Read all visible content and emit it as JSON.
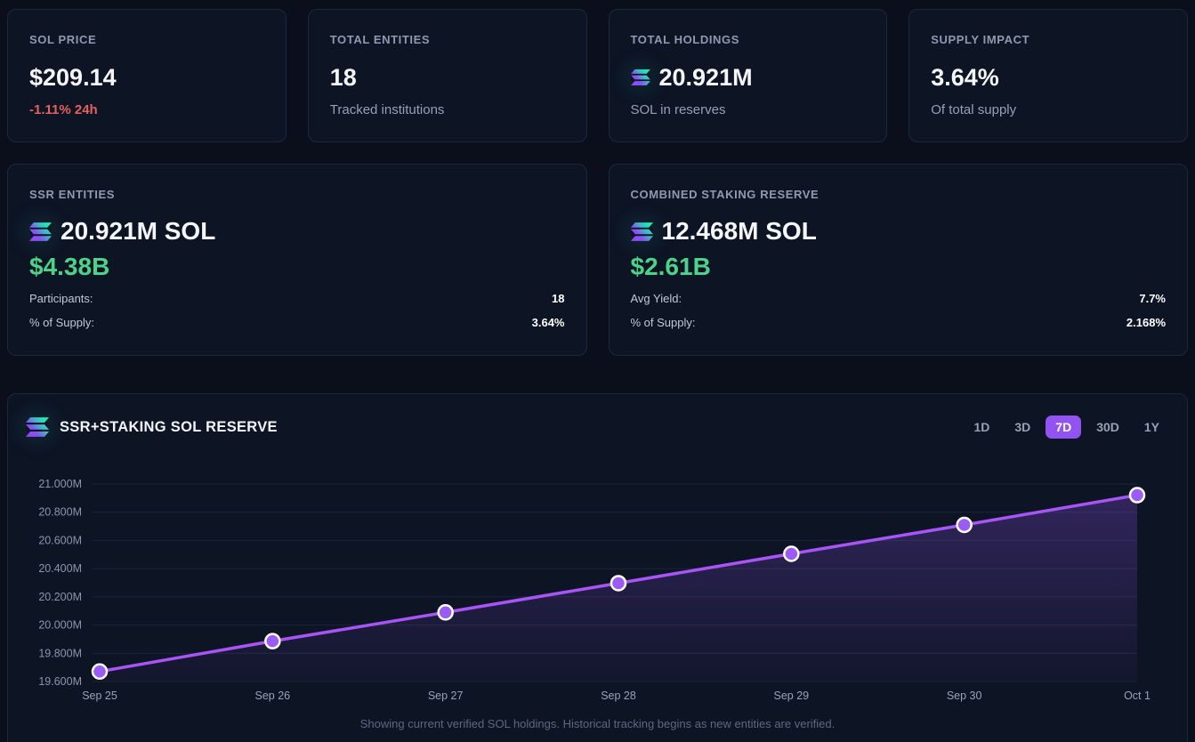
{
  "colors": {
    "accent_purple": "#9353f3",
    "line_purple": "#a855f7",
    "point_purple": "#9b5cf6",
    "positive_green": "#4ed188",
    "negative_red": "#e5605e"
  },
  "stats": [
    {
      "label": "SOL PRICE",
      "value": "$209.14",
      "sub": "-1.11% 24h"
    },
    {
      "label": "TOTAL ENTITIES",
      "value": "18",
      "sub": "Tracked institutions"
    },
    {
      "label": "TOTAL HOLDINGS",
      "value": "20.921M",
      "sub": "SOL in reserves",
      "icon": "solana-icon"
    },
    {
      "label": "SUPPLY IMPACT",
      "value": "3.64%",
      "sub": "Of total supply"
    }
  ],
  "ssr_entities": {
    "label": "SSR ENTITIES",
    "icon": "solana-icon",
    "sol_value": "20.921M SOL",
    "usd_value": "$4.38B",
    "rows": [
      {
        "label": "Participants:",
        "value": "18"
      },
      {
        "label": "% of Supply:",
        "value": "3.64%"
      }
    ]
  },
  "staking_reserve": {
    "label": "COMBINED STAKING RESERVE",
    "icon": "solana-icon",
    "sol_value": "12.468M SOL",
    "usd_value": "$2.61B",
    "rows": [
      {
        "label": "Avg Yield:",
        "value": "7.7%"
      },
      {
        "label": "% of Supply:",
        "value": "2.168%"
      }
    ]
  },
  "chart": {
    "title": "SSR+STAKING SOL RESERVE",
    "icon": "solana-icon",
    "ranges": [
      {
        "label": "1D",
        "active": false
      },
      {
        "label": "3D",
        "active": false
      },
      {
        "label": "7D",
        "active": true
      },
      {
        "label": "30D",
        "active": false
      },
      {
        "label": "1Y",
        "active": false
      }
    ],
    "footer": "Showing current verified SOL holdings. Historical tracking begins as new entities are verified."
  },
  "chart_data": {
    "type": "line",
    "title": "SSR+STAKING SOL RESERVE",
    "x": [
      "Sep 25",
      "Sep 26",
      "Sep 27",
      "Sep 28",
      "Sep 29",
      "Sep 30",
      "Oct 1"
    ],
    "series": [
      {
        "name": "SSR+Staking SOL Reserve (M SOL)",
        "values": [
          19.671,
          19.886,
          20.09,
          20.297,
          20.505,
          20.71,
          20.921
        ]
      }
    ],
    "ylim": [
      19.6,
      21.0
    ],
    "yticks": [
      19.6,
      19.8,
      20.0,
      20.2,
      20.4,
      20.6,
      20.8,
      21.0
    ],
    "ytick_suffix": "M",
    "ytick_decimals": 3,
    "grid": "horizontal",
    "area": true,
    "legend": "none",
    "line_color": "#a855f7",
    "point_fill": "#9b5cf6",
    "point_stroke": "#ffffff"
  }
}
